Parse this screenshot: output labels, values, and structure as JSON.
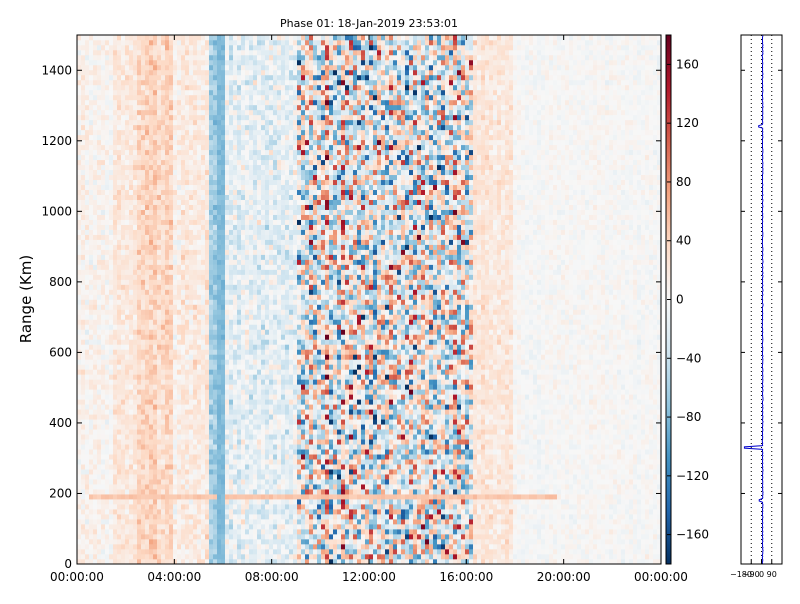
{
  "chart_data": [
    {
      "type": "heatmap",
      "title": "Phase 01: 18-Jan-2019 23:53:01",
      "xlabel": "",
      "ylabel": "Range (Km)",
      "x_ticks": [
        "00:00:00",
        "04:00:00",
        "08:00:00",
        "12:00:00",
        "16:00:00",
        "20:00:00",
        "00:00:00"
      ],
      "x_tick_hours": [
        0,
        4,
        8,
        12,
        16,
        20,
        24
      ],
      "xlim_hours": [
        0,
        24
      ],
      "y_ticks": [
        0,
        200,
        400,
        600,
        800,
        1000,
        1200,
        1400
      ],
      "ylim": [
        0,
        1500
      ],
      "colorbar": {
        "ticks": [
          160,
          120,
          80,
          40,
          0,
          -40,
          -80,
          -120,
          -160
        ],
        "range": [
          -180,
          180
        ],
        "colormap": "RdBu_r",
        "colors": {
          "high": "#67001f",
          "mid": "#f7f7f7",
          "low": "#053061"
        }
      },
      "column_profile_hours": [
        {
          "hours": [
            0,
            1.5
          ],
          "mean": 5,
          "spread": 25
        },
        {
          "hours": [
            1.5,
            2.5
          ],
          "mean": 20,
          "spread": 25
        },
        {
          "hours": [
            2.5,
            4
          ],
          "mean": 35,
          "spread": 30
        },
        {
          "hours": [
            4,
            5.5
          ],
          "mean": 15,
          "spread": 30
        },
        {
          "hours": [
            5.5,
            6
          ],
          "mean": -60,
          "spread": 30
        },
        {
          "hours": [
            6,
            9
          ],
          "mean": -15,
          "spread": 45
        },
        {
          "hours": [
            9,
            16.2
          ],
          "mean": 0,
          "spread": 170
        },
        {
          "hours": [
            16.2,
            18
          ],
          "mean": 20,
          "spread": 25
        },
        {
          "hours": [
            18,
            24
          ],
          "mean": 0,
          "spread": 15
        }
      ],
      "features": [
        {
          "label": "positive band",
          "hours": [
            0.5,
            19.8
          ],
          "range_km": [
            180,
            200
          ],
          "value": 50
        },
        {
          "label": "negative streak",
          "hours": [
            5.7,
            6.0
          ],
          "range_km": [
            0,
            1500
          ],
          "value": -80
        }
      ]
    },
    {
      "type": "line",
      "xlabel": "",
      "ylabel": "",
      "x_ticks": [
        -180,
        -90,
        0,
        90
      ],
      "xlim": [
        -180,
        180
      ],
      "ylim": [
        0,
        1500
      ],
      "grid": "vertical-dotted",
      "line_color": "#0000cc",
      "baseline_value": 10,
      "spikes": [
        {
          "range_km": 330,
          "value": -150
        },
        {
          "range_km": 1240,
          "value": -25
        },
        {
          "range_km": 180,
          "value": -20
        }
      ]
    }
  ]
}
